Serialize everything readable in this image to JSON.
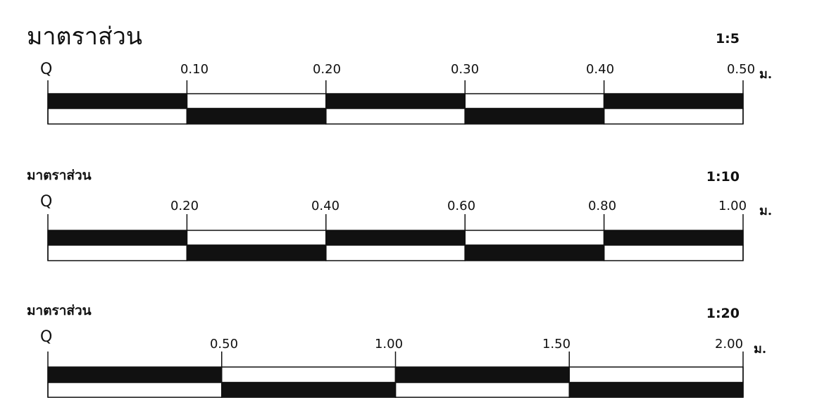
{
  "colors": {
    "ink": "#111111",
    "paper": "#ffffff"
  },
  "scales": [
    {
      "title": "มาตราส่วน",
      "ratio": "1:5",
      "zero_label": "Q",
      "unit": "ม.",
      "ticks": [
        "0.10",
        "0.20",
        "0.30",
        "0.40",
        "0.50"
      ],
      "segment_pattern": [
        "black-top",
        "black-bottom",
        "black-top",
        "black-bottom",
        "black-top"
      ]
    },
    {
      "title": "มาตราส่วน",
      "ratio": "1:10",
      "zero_label": "Q",
      "unit": "ม.",
      "ticks": [
        "0.20",
        "0.40",
        "0.60",
        "0.80",
        "1.00"
      ],
      "segment_pattern": [
        "black-top",
        "black-bottom",
        "black-top",
        "black-bottom",
        "black-top"
      ]
    },
    {
      "title": "มาตราส่วน",
      "ratio": "1:20",
      "zero_label": "Q",
      "unit": "ม.",
      "ticks": [
        "0.50",
        "1.00",
        "1.50",
        "2.00"
      ],
      "segment_pattern": [
        "black-top",
        "black-bottom",
        "black-top",
        "black-bottom"
      ]
    }
  ]
}
